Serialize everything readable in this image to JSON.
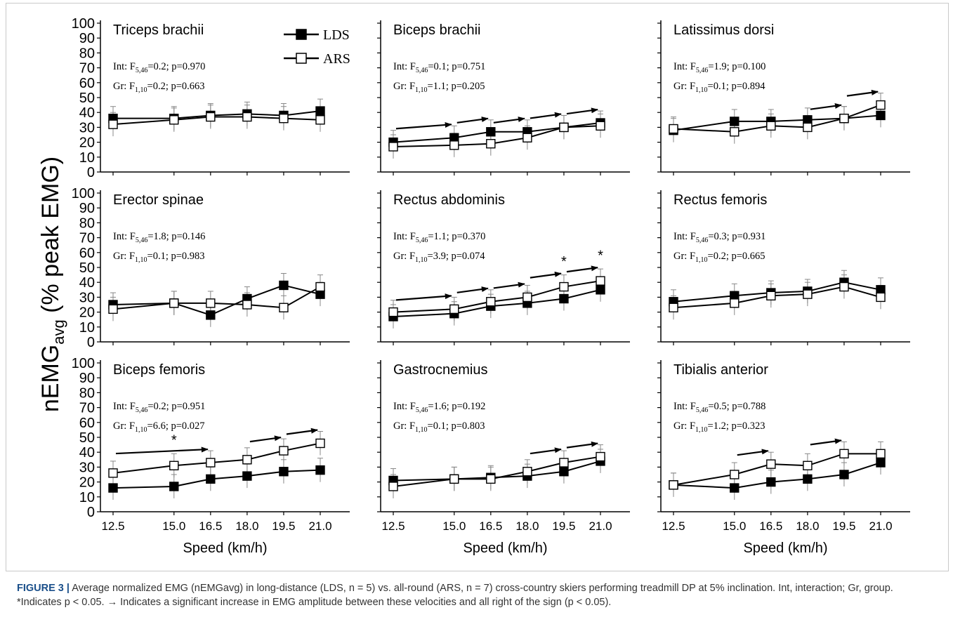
{
  "figure": {
    "ylabel": "nEMG",
    "ylabel_sub": "avg",
    "ylabel_rest": " (% peak EMG)",
    "xlabel": "Speed (km/h)",
    "legend": [
      {
        "label": "LDS",
        "marker": "filled-square"
      },
      {
        "label": "ARS",
        "marker": "open-square"
      }
    ],
    "caption_label": "FIGURE 3 |",
    "caption_text": "Average normalized EMG (nEMGavg) in long-distance (LDS, n = 5) vs. all-round (ARS, n = 7) cross-country skiers performing treadmill DP at 5% inclination. Int, interaction; Gr, group. *Indicates p < 0.05. → Indicates a significant increase in EMG amplitude between these velocities and all right of the sign (p < 0.05).",
    "colors": {
      "line": "#000000",
      "error_bar": "#888888",
      "caption_label": "#1a4f8a"
    }
  },
  "chart_data": [
    {
      "type": "line",
      "title": "Triceps brachii",
      "int": "Int: F5,46=0.2; p=0.970",
      "gr": "Gr: F1,10=0.2; p=0.663",
      "x": [
        12.5,
        15.0,
        16.5,
        18.0,
        19.5,
        21.0
      ],
      "ylim": [
        0,
        100
      ],
      "yticks": [
        0,
        10,
        20,
        30,
        40,
        50,
        60,
        70,
        80,
        90,
        100
      ],
      "series": [
        {
          "name": "LDS",
          "values": [
            36,
            36,
            38,
            39,
            38,
            41
          ]
        },
        {
          "name": "ARS",
          "values": [
            32,
            35,
            37,
            37,
            36,
            35
          ]
        }
      ],
      "arrows": [],
      "stars": []
    },
    {
      "type": "line",
      "title": "Biceps brachii",
      "int": "Int: F5,46=0.1; p=0.751",
      "gr": "Gr: F1,10=1.1; p=0.205",
      "x": [
        12.5,
        15.0,
        16.5,
        18.0,
        19.5,
        21.0
      ],
      "ylim": [
        0,
        100
      ],
      "yticks": [
        0,
        10,
        20,
        30,
        40,
        50,
        60,
        70,
        80,
        90,
        100
      ],
      "series": [
        {
          "name": "LDS",
          "values": [
            20,
            23,
            27,
            27,
            30,
            33
          ]
        },
        {
          "name": "ARS",
          "values": [
            17,
            18,
            19,
            23,
            30,
            31
          ]
        }
      ],
      "arrows": [
        [
          12.5,
          15.0
        ],
        [
          15.0,
          16.5
        ],
        [
          16.5,
          18.0
        ],
        [
          18.0,
          19.5
        ],
        [
          19.5,
          21.0
        ]
      ],
      "stars": []
    },
    {
      "type": "line",
      "title": "Latissimus dorsi",
      "int": "Int: F5,46=1.9; p=0.100",
      "gr": "Gr: F1,10=0.1; p=0.894",
      "x": [
        12.5,
        15.0,
        16.5,
        18.0,
        19.5,
        21.0
      ],
      "ylim": [
        0,
        100
      ],
      "yticks": [
        0,
        10,
        20,
        30,
        40,
        50,
        60,
        70,
        80,
        90,
        100
      ],
      "series": [
        {
          "name": "LDS",
          "values": [
            28,
            34,
            34,
            35,
            36,
            38
          ]
        },
        {
          "name": "ARS",
          "values": [
            29,
            27,
            31,
            30,
            36,
            45
          ]
        }
      ],
      "arrows": [
        [
          18.0,
          19.5
        ],
        [
          19.5,
          21.0
        ]
      ],
      "stars": []
    },
    {
      "type": "line",
      "title": "Erector spinae",
      "int": "Int: F5,46=1.8; p=0.146",
      "gr": "Gr: F1,10=0.1; p=0.983",
      "x": [
        12.5,
        15.0,
        16.5,
        18.0,
        19.5,
        21.0
      ],
      "ylim": [
        0,
        100
      ],
      "yticks": [
        0,
        10,
        20,
        30,
        40,
        50,
        60,
        70,
        80,
        90,
        100
      ],
      "series": [
        {
          "name": "LDS",
          "values": [
            25,
            26,
            18,
            29,
            38,
            32
          ]
        },
        {
          "name": "ARS",
          "values": [
            22,
            26,
            26,
            25,
            23,
            37
          ]
        }
      ],
      "arrows": [],
      "stars": []
    },
    {
      "type": "line",
      "title": "Rectus abdominis",
      "int": "Int: F5,46=1.1; p=0.370",
      "gr": "Gr: F1,10=3.9; p=0.074",
      "x": [
        12.5,
        15.0,
        16.5,
        18.0,
        19.5,
        21.0
      ],
      "ylim": [
        0,
        100
      ],
      "yticks": [
        0,
        10,
        20,
        30,
        40,
        50,
        60,
        70,
        80,
        90,
        100
      ],
      "series": [
        {
          "name": "LDS",
          "values": [
            17,
            19,
            24,
            26,
            29,
            35
          ]
        },
        {
          "name": "ARS",
          "values": [
            20,
            22,
            27,
            30,
            37,
            41
          ]
        }
      ],
      "arrows": [
        [
          12.5,
          15.0
        ],
        [
          15.0,
          16.5
        ],
        [
          16.5,
          18.0
        ],
        [
          18.0,
          19.5
        ],
        [
          19.5,
          21.0
        ]
      ],
      "stars": [
        19.5,
        21.0
      ]
    },
    {
      "type": "line",
      "title": "Rectus femoris",
      "int": "Int: F5,46=0.3; p=0.931",
      "gr": "Gr: F1,10=0.2; p=0.665",
      "x": [
        12.5,
        15.0,
        16.5,
        18.0,
        19.5,
        21.0
      ],
      "ylim": [
        0,
        100
      ],
      "yticks": [
        0,
        10,
        20,
        30,
        40,
        50,
        60,
        70,
        80,
        90,
        100
      ],
      "series": [
        {
          "name": "LDS",
          "values": [
            27,
            31,
            33,
            34,
            40,
            35
          ]
        },
        {
          "name": "ARS",
          "values": [
            23,
            26,
            31,
            32,
            37,
            30
          ]
        }
      ],
      "arrows": [],
      "stars": []
    },
    {
      "type": "line",
      "title": "Biceps femoris",
      "int": "Int: F5,46=0.2; p=0.951",
      "gr": "Gr: F1,10=6.6; p=0.027",
      "x": [
        12.5,
        15.0,
        16.5,
        18.0,
        19.5,
        21.0
      ],
      "ylim": [
        0,
        100
      ],
      "yticks": [
        0,
        10,
        20,
        30,
        40,
        50,
        60,
        70,
        80,
        90,
        100
      ],
      "series": [
        {
          "name": "LDS",
          "values": [
            16,
            17,
            22,
            24,
            27,
            28
          ]
        },
        {
          "name": "ARS",
          "values": [
            26,
            31,
            33,
            35,
            41,
            46
          ]
        }
      ],
      "arrows": [
        [
          12.5,
          16.5
        ],
        [
          18.0,
          19.5
        ],
        [
          19.5,
          21.0
        ]
      ],
      "stars": [
        15.0
      ]
    },
    {
      "type": "line",
      "title": "Gastrocnemius",
      "int": "Int: F5,46=1.6; p=0.192",
      "gr": "Gr: F1,10=0.1; p=0.803",
      "x": [
        12.5,
        15.0,
        16.5,
        18.0,
        19.5,
        21.0
      ],
      "ylim": [
        0,
        100
      ],
      "yticks": [
        0,
        10,
        20,
        30,
        40,
        50,
        60,
        70,
        80,
        90,
        100
      ],
      "series": [
        {
          "name": "LDS",
          "values": [
            21,
            22,
            23,
            24,
            27,
            34
          ]
        },
        {
          "name": "ARS",
          "values": [
            17,
            22,
            22,
            27,
            33,
            37
          ]
        }
      ],
      "arrows": [
        [
          18.0,
          19.5
        ],
        [
          19.5,
          21.0
        ]
      ],
      "stars": []
    },
    {
      "type": "line",
      "title": "Tibialis anterior",
      "int": "Int: F5,46=0.5; p=0.788",
      "gr": "Gr: F1,10=1.2; p=0.323",
      "x": [
        12.5,
        15.0,
        16.5,
        18.0,
        19.5,
        21.0
      ],
      "ylim": [
        0,
        100
      ],
      "yticks": [
        0,
        10,
        20,
        30,
        40,
        50,
        60,
        70,
        80,
        90,
        100
      ],
      "series": [
        {
          "name": "LDS",
          "values": [
            18,
            16,
            20,
            22,
            25,
            33
          ]
        },
        {
          "name": "ARS",
          "values": [
            18,
            25,
            32,
            31,
            39,
            39
          ]
        }
      ],
      "arrows": [
        [
          15.0,
          16.5
        ],
        [
          18.0,
          19.5
        ]
      ],
      "stars": []
    }
  ],
  "x_tick_labels": [
    "12.5",
    "15.0",
    "16.5",
    "18.0",
    "19.5",
    "21.0"
  ]
}
